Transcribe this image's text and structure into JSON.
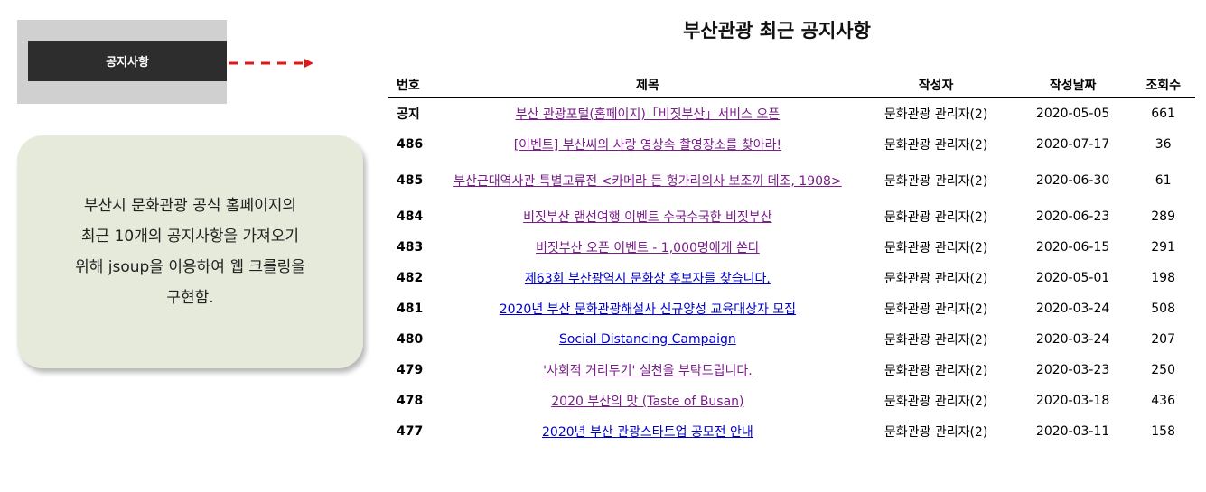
{
  "nav": {
    "button_label": "공지사항"
  },
  "note": {
    "text": "부산시 문화관광 공식 홈페이지의\n최근 10개의 공지사항을 가져오기\n위해 jsoup을 이용하여 웹 크롤링을\n구현함."
  },
  "page_title": "부산관광 최근 공지사항",
  "table": {
    "headers": {
      "no": "번호",
      "title": "제목",
      "author": "작성자",
      "date": "작성날짜",
      "views": "조회수"
    },
    "rows": [
      {
        "no": "공지",
        "title": "부산 관광포털(홈페이지)「비짓부산」서비스 오픈",
        "author": "문화관광 관리자(2)",
        "date": "2020-05-05",
        "views": "661",
        "link_color": "#7a1c8a"
      },
      {
        "no": "486",
        "title": "[이벤트] 부산씨의 사랑 영상속 촬영장소를 찾아라!",
        "author": "문화관광 관리자(2)",
        "date": "2020-07-17",
        "views": "36",
        "link_color": "#7a1c8a"
      },
      {
        "no": "485",
        "title": "부산근대역사관 특별교류전 <카메라 든 헝가리의사 보조끼 데조, 1908>",
        "author": "문화관광 관리자(2)",
        "date": "2020-06-30",
        "views": "61",
        "link_color": "#7a1c8a"
      },
      {
        "no": "484",
        "title": "비짓부산 랜선여행 이벤트 수국수국한 비짓부산",
        "author": "문화관광 관리자(2)",
        "date": "2020-06-23",
        "views": "289",
        "link_color": "#7a1c8a"
      },
      {
        "no": "483",
        "title": "비짓부산 오픈 이벤트 - 1,000명에게 쏜다",
        "author": "문화관광 관리자(2)",
        "date": "2020-06-15",
        "views": "291",
        "link_color": "#7a1c8a"
      },
      {
        "no": "482",
        "title": "제63회 부산광역시 문화상 후보자를 찾습니다.",
        "author": "문화관광 관리자(2)",
        "date": "2020-05-01",
        "views": "198",
        "link_color": "#0000cc"
      },
      {
        "no": "481",
        "title": "2020년 부산 문화관광해설사 신규양성 교육대상자 모집",
        "author": "문화관광 관리자(2)",
        "date": "2020-03-24",
        "views": "508",
        "link_color": "#0000cc"
      },
      {
        "no": "480",
        "title": "Social Distancing Campaign",
        "author": "문화관광 관리자(2)",
        "date": "2020-03-24",
        "views": "207",
        "link_color": "#0000cc"
      },
      {
        "no": "479",
        "title": "'사회적 거리두기' 실천을 부탁드립니다.",
        "author": "문화관광 관리자(2)",
        "date": "2020-03-23",
        "views": "250",
        "link_color": "#7a1c8a"
      },
      {
        "no": "478",
        "title": "2020 부산의 맛 (Taste of Busan)",
        "author": "문화관광 관리자(2)",
        "date": "2020-03-18",
        "views": "436",
        "link_color": "#7a1c8a"
      },
      {
        "no": "477",
        "title": "2020년 부산 관광스타트업 공모전 안내",
        "author": "문화관광 관리자(2)",
        "date": "2020-03-11",
        "views": "158",
        "link_color": "#0000cc"
      }
    ]
  },
  "colors": {
    "nav_button_bg": "#2d2d2d",
    "nav_box_bg": "#d0d0d0",
    "note_bg": "#e6eadb",
    "arrow": "#e01818",
    "visited_link": "#7a1c8a",
    "unvisited_link": "#0000cc"
  }
}
